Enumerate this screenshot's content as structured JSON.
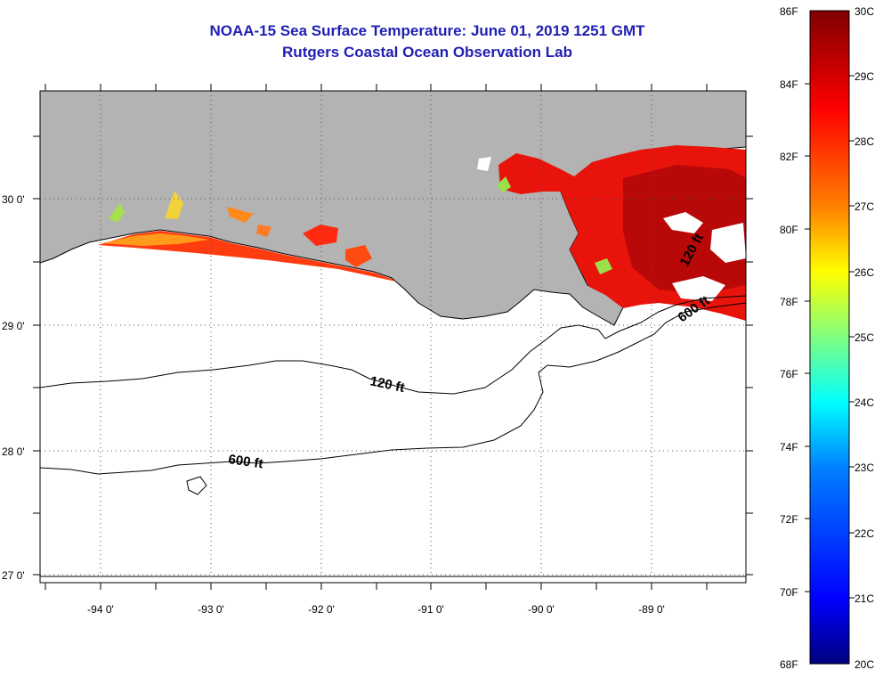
{
  "title": {
    "line1": "NOAA-15 Sea Surface Temperature:  June 01, 2019 1251 GMT",
    "line2": "Rutgers Coastal Ocean Observation Lab"
  },
  "colors": {
    "title": "#1f1fb4",
    "land": "#b3b3b3",
    "cloud": "#ffffff",
    "contour": "#000000"
  },
  "axes": {
    "latitude_labels": [
      "30 0'",
      "29 0'",
      "28 0'",
      "27 0'"
    ],
    "longitude_labels": [
      "-94 0'",
      "-93 0'",
      "-92 0'",
      "-91 0'",
      "-90 0'",
      "-89 0'"
    ],
    "lat_range": [
      27,
      30.8
    ],
    "lon_range": [
      -94.5,
      -88.1
    ],
    "grid": "dotted"
  },
  "contours": {
    "shallow_label": "120 ft",
    "deep_label": "600 ft"
  },
  "colorbar": {
    "fahrenheit_labels": [
      "86F",
      "84F",
      "82F",
      "80F",
      "78F",
      "76F",
      "74F",
      "72F",
      "70F",
      "68F"
    ],
    "celsius_labels": [
      "30C",
      "29C",
      "28C",
      "27C",
      "26C",
      "25C",
      "24C",
      "23C",
      "22C",
      "21C",
      "20C"
    ],
    "range_c": [
      20,
      30
    ],
    "range_f": [
      68,
      86
    ]
  }
}
